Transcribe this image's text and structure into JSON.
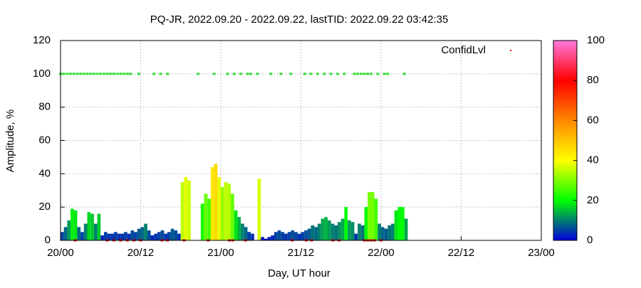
{
  "chart_data": {
    "type": "bar",
    "title": "PQ-JR, 2022.09.20 - 2022.09.22, lastTID: 2022.09.22 03:42:35",
    "x_label": "Day, UT hour",
    "y_label": "Amplitude, %",
    "xlim": [
      0,
      72
    ],
    "xticks": [
      {
        "value": 0,
        "label": "20/00"
      },
      {
        "value": 12,
        "label": "20/12"
      },
      {
        "value": 24,
        "label": "21/00"
      },
      {
        "value": 36,
        "label": "21/12"
      },
      {
        "value": 48,
        "label": "22/00"
      },
      {
        "value": 60,
        "label": "22/12"
      },
      {
        "value": 72,
        "label": "23/00"
      }
    ],
    "ylim": [
      0,
      120
    ],
    "yticks": [
      0,
      20,
      40,
      60,
      80,
      100,
      120
    ],
    "grid": true,
    "cblim": [
      0,
      100
    ],
    "cbticks": [
      0,
      20,
      40,
      60,
      80,
      100
    ],
    "colorbar_colors": [
      "#0000dd",
      "#00ff00",
      "#ffff00",
      "#ff8800",
      "#ff0000",
      "#ff77dd"
    ],
    "x": [
      0,
      0.5,
      1,
      1.5,
      2,
      2.5,
      3,
      3.5,
      4,
      4.5,
      5,
      5.5,
      6,
      6.5,
      7,
      7.5,
      8,
      8.5,
      9,
      9.5,
      10,
      10.5,
      11,
      11.5,
      12,
      12.5,
      13,
      13.5,
      14,
      14.5,
      15,
      15.5,
      16,
      16.5,
      17,
      17.5,
      18,
      18.5,
      19,
      19.5,
      20,
      20.5,
      21,
      21.5,
      22,
      22.5,
      23,
      23.5,
      24,
      24.5,
      25,
      25.5,
      26,
      26.5,
      27,
      27.5,
      28,
      28.5,
      29,
      29.5,
      30,
      30.5,
      31,
      31.5,
      32,
      32.5,
      33,
      33.5,
      34,
      34.5,
      35,
      35.5,
      36,
      36.5,
      37,
      37.5,
      38,
      38.5,
      39,
      39.5,
      40,
      40.5,
      41,
      41.5,
      42,
      42.5,
      43,
      43.5,
      44,
      44.5,
      45,
      45.5,
      46,
      46.5,
      47,
      47.5,
      48,
      48.5,
      49,
      49.5,
      50,
      50.5,
      51,
      51.5
    ],
    "values": [
      5,
      8,
      12,
      19,
      18,
      8,
      5,
      10,
      17,
      16,
      10,
      16,
      3,
      5,
      4,
      4,
      5,
      4,
      4,
      5,
      4,
      6,
      5,
      7,
      8,
      10,
      6,
      3,
      4,
      5,
      6,
      4,
      5,
      7,
      6,
      4,
      35,
      38,
      36,
      null,
      null,
      null,
      22,
      28,
      25,
      44,
      46,
      38,
      32,
      35,
      34,
      28,
      18,
      14,
      10,
      8,
      5,
      4,
      null,
      37,
      2,
      1,
      2,
      3,
      5,
      6,
      5,
      4,
      5,
      6,
      5,
      4,
      5,
      6,
      7,
      9,
      8,
      10,
      13,
      14,
      12,
      10,
      9,
      11,
      13,
      20,
      12,
      11,
      4,
      10,
      9,
      20,
      29,
      29,
      25,
      10,
      8,
      7,
      9,
      10,
      18,
      20,
      20,
      13
    ],
    "series": [
      {
        "name": "ConfidLvl",
        "color": "#dd0000",
        "high_color": "#33dd33",
        "x": [
          0,
          0.5,
          1,
          1.5,
          2,
          2.5,
          3,
          3.5,
          4,
          4.5,
          5,
          5.5,
          6,
          6.5,
          7,
          7.5,
          8,
          8.5,
          9,
          9.5,
          10,
          10.5,
          11.7,
          14,
          15,
          16,
          20.6,
          23,
          25,
          26,
          27,
          28,
          28.5,
          29.5,
          31.5,
          33,
          34.5,
          36.6,
          37.5,
          38.5,
          39.5,
          40.5,
          41.5,
          42.5,
          44,
          44.5,
          45,
          45.5,
          46,
          46.5,
          47.5,
          48.5,
          49,
          51.5,
          2.2,
          7,
          8,
          9,
          10,
          11,
          12,
          15.2,
          16,
          18.5,
          22.1,
          25.3,
          25.8,
          27.7,
          34.7,
          36.8,
          37.6,
          40.8,
          41.7,
          45.5,
          46,
          46.5,
          47,
          48
        ],
        "values": [
          100,
          100,
          100,
          100,
          100,
          100,
          100,
          100,
          100,
          100,
          100,
          100,
          100,
          100,
          100,
          100,
          100,
          100,
          100,
          100,
          100,
          100,
          100,
          100,
          100,
          100,
          100,
          100,
          100,
          100,
          100,
          100,
          100,
          100,
          100,
          100,
          100,
          100,
          100,
          100,
          100,
          100,
          100,
          100,
          100,
          100,
          100,
          100,
          100,
          100,
          100,
          100,
          100,
          100,
          0,
          0,
          0,
          0,
          0,
          0,
          0,
          0,
          0,
          0,
          0,
          0,
          0,
          0,
          0,
          0,
          0,
          0,
          0,
          0,
          0,
          0,
          0,
          0
        ]
      }
    ]
  }
}
